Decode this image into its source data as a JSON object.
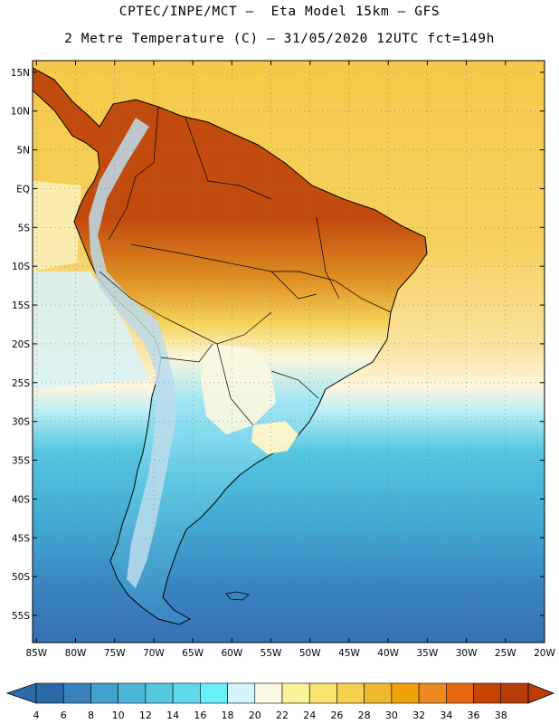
{
  "header": {
    "line1": "CPTEC/INPE/MCT –  Eta Model 15km – GFS",
    "line2": "2 Metre Temperature (C) – 31/05/2020 12UTC fct=149h"
  },
  "map": {
    "lat_labels": [
      "15N",
      "10N",
      "5N",
      "EQ",
      "5S",
      "10S",
      "15S",
      "20S",
      "25S",
      "30S",
      "35S",
      "40S",
      "45S",
      "50S",
      "55S"
    ],
    "lat_values": [
      15,
      10,
      5,
      0,
      -5,
      -10,
      -15,
      -20,
      -25,
      -30,
      -35,
      -40,
      -45,
      -50,
      -55
    ],
    "lon_labels": [
      "85W",
      "80W",
      "75W",
      "70W",
      "65W",
      "60W",
      "55W",
      "50W",
      "45W",
      "40W",
      "35W",
      "30W",
      "25W",
      "20W"
    ],
    "lon_values": [
      -85,
      -80,
      -75,
      -70,
      -65,
      -60,
      -55,
      -50,
      -45,
      -40,
      -35,
      -30,
      -25,
      -20
    ],
    "lat_range": [
      -58.5,
      16.5
    ],
    "lon_range": [
      -85.5,
      -20
    ]
  },
  "colorbar": {
    "labels": [
      "4",
      "6",
      "8",
      "10",
      "12",
      "14",
      "16",
      "18",
      "20",
      "22",
      "24",
      "26",
      "28",
      "30",
      "32",
      "34",
      "36",
      "38"
    ],
    "colors": [
      "#2c6aa8",
      "#3a82bd",
      "#41a0cc",
      "#4cb8d8",
      "#55c8e0",
      "#5fd9ea",
      "#69f0fb",
      "#d2f5fb",
      "#fdf8e2",
      "#fbf39a",
      "#f9e270",
      "#f6cf4f",
      "#f0b830",
      "#eda20a",
      "#ea8a20",
      "#e56a10",
      "#c44500",
      "#b83d08"
    ]
  },
  "palette": {
    "ocean_north": "#f6d356",
    "ocean_mid": "#fbe6a0",
    "ocean_south": "#35a9d1",
    "ocean_deep": "#3b78b9",
    "land_hot": "#c24a0d",
    "land_cold": "#3a86c2"
  }
}
